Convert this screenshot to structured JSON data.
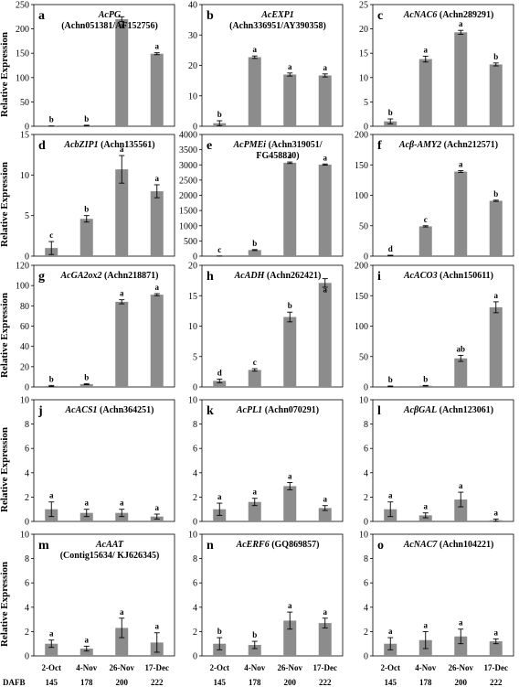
{
  "y_axis_label": "Relative Expression",
  "x_axis": {
    "dates": [
      "2-Oct",
      "4-Nov",
      "26-Nov",
      "17-Dec"
    ],
    "dafb_label": "DAFB",
    "dafb": [
      "145",
      "178",
      "200",
      "222"
    ]
  },
  "colors": {
    "bar": "#8c8c8c",
    "axis": "#000000",
    "text": "#000000"
  },
  "chart_data": [
    {
      "type": "bar",
      "letter": "a",
      "gene": "AcPG",
      "title_rest": "",
      "subtitle": "(Achn051381/AF152756)",
      "ylim": [
        0,
        250
      ],
      "yticks": [
        0,
        50,
        100,
        150,
        200,
        250
      ],
      "values": [
        0.3,
        1.5,
        220,
        149
      ],
      "errors": [
        0.2,
        0.6,
        5,
        2
      ],
      "labels": [
        "b",
        "b",
        "a",
        "a"
      ]
    },
    {
      "type": "bar",
      "letter": "b",
      "gene": "AcEXP1",
      "title_rest": "",
      "subtitle": "(Achn336951/AY390358)",
      "ylim": [
        0,
        40
      ],
      "yticks": [
        0,
        10,
        20,
        30,
        40
      ],
      "values": [
        1,
        22.7,
        17,
        16.7
      ],
      "errors": [
        0.8,
        0.4,
        0.5,
        0.5
      ],
      "labels": [
        "b",
        "a",
        "a",
        "a"
      ]
    },
    {
      "type": "bar",
      "letter": "c",
      "gene": "AcNAC6",
      "title_rest": " (Achn289291)",
      "subtitle": "",
      "ylim": [
        0,
        25
      ],
      "yticks": [
        0,
        5,
        10,
        15,
        20,
        25
      ],
      "values": [
        1,
        13.8,
        19.3,
        12.7
      ],
      "errors": [
        0.5,
        0.6,
        0.4,
        0.3
      ],
      "labels": [
        "b",
        "a",
        "a",
        "b"
      ]
    },
    {
      "type": "bar",
      "letter": "d",
      "gene": "AcbZIP1",
      "title_rest": " (Achn135561)",
      "subtitle": "",
      "ylim": [
        0,
        15
      ],
      "yticks": [
        0,
        5,
        10,
        15
      ],
      "values": [
        1,
        4.6,
        10.7,
        8
      ],
      "errors": [
        0.8,
        0.4,
        1.7,
        0.8
      ],
      "labels": [
        "c",
        "b",
        "a",
        "a"
      ]
    },
    {
      "type": "bar",
      "letter": "e",
      "gene": "AcPMEi",
      "title_rest": " (Achn319051/",
      "subtitle": "FG458820)",
      "ylim": [
        0,
        4000
      ],
      "yticks": [
        0,
        500,
        1000,
        1500,
        2000,
        2500,
        3000,
        3500,
        4000
      ],
      "values": [
        1,
        200,
        3070,
        3010
      ],
      "errors": [
        0.5,
        15,
        25,
        20
      ],
      "labels": [
        "c",
        "b",
        "a",
        "a"
      ]
    },
    {
      "type": "bar",
      "letter": "f",
      "gene": "Acβ-AMY2",
      "title_rest": " (Achn212571)",
      "subtitle": "",
      "ylim": [
        0,
        200
      ],
      "yticks": [
        0,
        50,
        100,
        150,
        200
      ],
      "values": [
        1,
        49,
        139,
        91
      ],
      "errors": [
        0.5,
        1,
        1.5,
        1
      ],
      "labels": [
        "d",
        "c",
        "a",
        "b"
      ]
    },
    {
      "type": "bar",
      "letter": "g",
      "gene": "AcGA2ox2",
      "title_rest": " (Achn218871)",
      "subtitle": "",
      "ylim": [
        0,
        120
      ],
      "yticks": [
        0,
        20,
        40,
        60,
        80,
        100,
        120
      ],
      "values": [
        1,
        2.8,
        84,
        91
      ],
      "errors": [
        0.5,
        0.5,
        2,
        1
      ],
      "labels": [
        "b",
        "b",
        "a",
        "a"
      ]
    },
    {
      "type": "bar",
      "letter": "h",
      "gene": "AcADH",
      "title_rest": " (Achn262421)",
      "subtitle": "",
      "ylim": [
        0,
        20
      ],
      "yticks": [
        0,
        5,
        10,
        15,
        20
      ],
      "values": [
        1,
        2.8,
        11.5,
        17.1
      ],
      "errors": [
        0.3,
        0.2,
        0.8,
        0.7
      ],
      "labels": [
        "d",
        "c",
        "b",
        "a"
      ]
    },
    {
      "type": "bar",
      "letter": "i",
      "gene": "AcACO3",
      "title_rest": " (Achn150611)",
      "subtitle": "",
      "ylim": [
        0,
        200
      ],
      "yticks": [
        0,
        50,
        100,
        150,
        200
      ],
      "values": [
        1,
        2,
        47,
        131
      ],
      "errors": [
        0.5,
        0.5,
        5,
        9
      ],
      "labels": [
        "b",
        "b",
        "ab",
        "a"
      ]
    },
    {
      "type": "bar",
      "letter": "j",
      "gene": "AcACS1",
      "title_rest": " (Achn364251)",
      "subtitle": "",
      "ylim": [
        0,
        10
      ],
      "yticks": [
        0,
        2,
        4,
        6,
        8,
        10
      ],
      "values": [
        1,
        0.7,
        0.7,
        0.4
      ],
      "errors": [
        0.6,
        0.3,
        0.3,
        0.2
      ],
      "labels": [
        "a",
        "a",
        "a",
        "a"
      ]
    },
    {
      "type": "bar",
      "letter": "k",
      "gene": "AcPL1",
      "title_rest": " (Achn070291)",
      "subtitle": "",
      "ylim": [
        0,
        10
      ],
      "yticks": [
        0,
        2,
        4,
        6,
        8,
        10
      ],
      "values": [
        1,
        1.6,
        2.9,
        1.1
      ],
      "errors": [
        0.5,
        0.3,
        0.3,
        0.2
      ],
      "labels": [
        "a",
        "a",
        "a",
        "a"
      ]
    },
    {
      "type": "bar",
      "letter": "l",
      "gene": "AcβGAL",
      "title_rest": " (Achn123061)",
      "subtitle": "",
      "ylim": [
        0,
        10
      ],
      "yticks": [
        0,
        2,
        4,
        6,
        8,
        10
      ],
      "values": [
        1,
        0.5,
        1.8,
        0.1
      ],
      "errors": [
        0.6,
        0.2,
        0.6,
        0.1
      ],
      "labels": [
        "a",
        "a",
        "a",
        "a"
      ]
    },
    {
      "type": "bar",
      "letter": "m",
      "gene": "AcAAT",
      "title_rest": "",
      "subtitle": "(Contig15634/ KJ626345)",
      "ylim": [
        0,
        10
      ],
      "yticks": [
        0,
        2,
        4,
        6,
        8,
        10
      ],
      "values": [
        1,
        0.6,
        2.3,
        1.1
      ],
      "errors": [
        0.3,
        0.2,
        0.8,
        0.8
      ],
      "labels": [
        "a",
        "a",
        "a",
        "a"
      ]
    },
    {
      "type": "bar",
      "letter": "n",
      "gene": "AcERF6",
      "title_rest": " (GQ869857)",
      "subtitle": "",
      "ylim": [
        0,
        10
      ],
      "yticks": [
        0,
        2,
        4,
        6,
        8,
        10
      ],
      "values": [
        1,
        0.9,
        2.9,
        2.7
      ],
      "errors": [
        0.5,
        0.3,
        0.7,
        0.4
      ],
      "labels": [
        "b",
        "b",
        "a",
        "a"
      ]
    },
    {
      "type": "bar",
      "letter": "o",
      "gene": "AcNAC7",
      "title_rest": " (Achn104221)",
      "subtitle": "",
      "ylim": [
        0,
        10
      ],
      "yticks": [
        0,
        2,
        4,
        6,
        8,
        10
      ],
      "values": [
        1,
        1.3,
        1.6,
        1.2
      ],
      "errors": [
        0.5,
        0.7,
        0.6,
        0.2
      ],
      "labels": [
        "a",
        "a",
        "a",
        "a"
      ]
    }
  ]
}
